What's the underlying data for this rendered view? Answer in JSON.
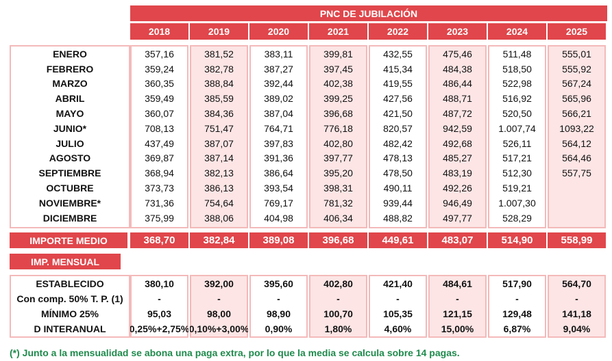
{
  "header": {
    "title": "PNC DE JUBILACIÓN",
    "years": [
      "2018",
      "2019",
      "2020",
      "2021",
      "2022",
      "2023",
      "2024",
      "2025"
    ]
  },
  "monthly": {
    "rows": [
      {
        "label": "ENERO",
        "values": [
          "357,16",
          "381,52",
          "383,11",
          "399,81",
          "432,55",
          "475,46",
          "511,48",
          "555,01"
        ]
      },
      {
        "label": "FEBRERO",
        "values": [
          "359,24",
          "382,78",
          "387,27",
          "397,45",
          "415,34",
          "484,38",
          "518,50",
          "555,92"
        ]
      },
      {
        "label": "MARZO",
        "values": [
          "360,35",
          "388,84",
          "392,44",
          "402,38",
          "419,55",
          "486,44",
          "522,98",
          "567,24"
        ]
      },
      {
        "label": "ABRIL",
        "values": [
          "359,49",
          "385,59",
          "389,02",
          "399,25",
          "427,56",
          "488,71",
          "516,92",
          "565,96"
        ]
      },
      {
        "label": "MAYO",
        "values": [
          "360,07",
          "384,36",
          "387,04",
          "396,68",
          "421,50",
          "487,72",
          "520,50",
          "566,21"
        ]
      },
      {
        "label": "JUNIO*",
        "values": [
          "708,13",
          "751,47",
          "764,71",
          "776,18",
          "820,57",
          "942,59",
          "1.007,74",
          "1093,22"
        ]
      },
      {
        "label": "JULIO",
        "values": [
          "437,49",
          "387,07",
          "397,83",
          "402,80",
          "482,42",
          "492,68",
          "526,11",
          "564,12"
        ]
      },
      {
        "label": "AGOSTO",
        "values": [
          "369,87",
          "387,14",
          "391,36",
          "397,77",
          "478,13",
          "485,27",
          "517,21",
          "564,46"
        ]
      },
      {
        "label": "SEPTIEMBRE",
        "values": [
          "368,94",
          "382,13",
          "386,64",
          "395,20",
          "478,50",
          "483,19",
          "512,30",
          "557,75"
        ]
      },
      {
        "label": "OCTUBRE",
        "values": [
          "373,73",
          "386,13",
          "393,54",
          "398,31",
          "490,11",
          "492,26",
          "519,21"
        ]
      },
      {
        "label": "NOVIEMBRE*",
        "values": [
          "731,36",
          "754,64",
          "769,17",
          "781,32",
          "939,44",
          "946,49",
          "1.007,30"
        ]
      },
      {
        "label": "DICIEMBRE",
        "values": [
          "375,99",
          "388,06",
          "404,98",
          "406,34",
          "488,82",
          "497,77",
          "528,29"
        ]
      }
    ]
  },
  "average": {
    "label": "IMPORTE MEDIO",
    "values": [
      "368,70",
      "382,84",
      "389,08",
      "396,68",
      "449,61",
      "483,07",
      "514,90",
      "558,99"
    ]
  },
  "monthly_amount": {
    "title": "IMP. MENSUAL",
    "rows": [
      {
        "label": "ESTABLECIDO",
        "values": [
          "380,10",
          "392,00",
          "395,60",
          "402,80",
          "421,40",
          "484,61",
          "517,90",
          "564,70"
        ]
      },
      {
        "label": "Con comp. 50% T. P. (1)",
        "values": [
          "-",
          "-",
          "-",
          "-",
          "-",
          "-",
          "-",
          "-"
        ]
      },
      {
        "label": "MÍNIMO 25%",
        "values": [
          "95,03",
          "98,00",
          "98,90",
          "100,70",
          "105,35",
          "121,15",
          "129,48",
          "141,18"
        ]
      },
      {
        "label": "D INTERANUAL",
        "values": [
          "0,25%+2,75%",
          "0,10%+3,00%",
          "0,90%",
          "1,80%",
          "4,60%",
          "15,00%",
          "6,87%",
          "9,04%"
        ]
      }
    ]
  },
  "footnote": "(*) Junto a la mensualidad se abona una paga extra, por lo que la media se calcula sobre 14 pagas."
}
